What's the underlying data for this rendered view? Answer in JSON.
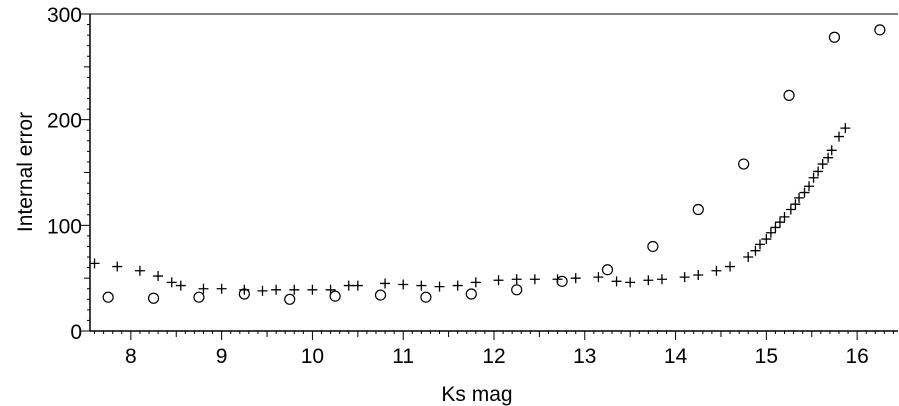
{
  "chart_data": {
    "type": "scatter",
    "title": "",
    "xlabel": "Ks mag",
    "ylabel": "Internal error",
    "xlim": [
      7.55,
      16.45
    ],
    "ylim": [
      0,
      300
    ],
    "x_ticks": [
      8,
      9,
      10,
      11,
      12,
      13,
      14,
      15,
      16
    ],
    "y_ticks": [
      0,
      100,
      200,
      300
    ],
    "x_minor_step": 0.1,
    "y_minor_step": 10,
    "grid": false,
    "colors": {
      "marker": "#000000",
      "axis": "#000000",
      "background": "#ffffff"
    },
    "series": [
      {
        "marker": "plus",
        "points": [
          [
            7.6,
            64
          ],
          [
            7.85,
            61
          ],
          [
            8.1,
            57
          ],
          [
            8.3,
            52
          ],
          [
            8.45,
            46
          ],
          [
            8.55,
            43
          ],
          [
            8.8,
            40
          ],
          [
            9.0,
            40
          ],
          [
            9.25,
            39
          ],
          [
            9.45,
            38
          ],
          [
            9.6,
            39
          ],
          [
            9.8,
            39
          ],
          [
            10.0,
            39
          ],
          [
            10.2,
            39
          ],
          [
            10.4,
            43
          ],
          [
            10.5,
            43
          ],
          [
            10.8,
            45
          ],
          [
            11.0,
            44
          ],
          [
            11.2,
            43
          ],
          [
            11.4,
            42
          ],
          [
            11.6,
            43
          ],
          [
            11.8,
            46
          ],
          [
            12.05,
            48
          ],
          [
            12.25,
            49
          ],
          [
            12.45,
            49
          ],
          [
            12.7,
            49
          ],
          [
            12.9,
            50
          ],
          [
            13.15,
            51
          ],
          [
            13.35,
            47
          ],
          [
            13.5,
            46
          ],
          [
            13.7,
            48
          ],
          [
            13.85,
            49
          ],
          [
            14.1,
            51
          ],
          [
            14.25,
            53
          ],
          [
            14.45,
            57
          ],
          [
            14.6,
            61
          ],
          [
            14.8,
            70
          ],
          [
            14.88,
            76
          ],
          [
            14.93,
            82
          ],
          [
            15.0,
            87
          ],
          [
            15.05,
            93
          ],
          [
            15.1,
            98
          ],
          [
            15.15,
            103
          ],
          [
            15.2,
            108
          ],
          [
            15.27,
            115
          ],
          [
            15.32,
            120
          ],
          [
            15.36,
            126
          ],
          [
            15.42,
            131
          ],
          [
            15.47,
            137
          ],
          [
            15.52,
            145
          ],
          [
            15.57,
            151
          ],
          [
            15.62,
            158
          ],
          [
            15.68,
            164
          ],
          [
            15.72,
            171
          ],
          [
            15.8,
            184
          ],
          [
            15.87,
            192
          ]
        ]
      },
      {
        "marker": "circle",
        "points": [
          [
            7.75,
            32
          ],
          [
            8.25,
            31
          ],
          [
            8.75,
            32
          ],
          [
            9.25,
            35
          ],
          [
            9.75,
            30
          ],
          [
            10.25,
            33
          ],
          [
            10.75,
            34
          ],
          [
            11.25,
            32
          ],
          [
            11.75,
            35
          ],
          [
            12.25,
            39
          ],
          [
            12.75,
            47
          ],
          [
            13.25,
            58
          ],
          [
            13.75,
            80
          ],
          [
            14.25,
            115
          ],
          [
            14.75,
            158
          ],
          [
            15.25,
            223
          ],
          [
            15.75,
            278
          ],
          [
            16.25,
            285
          ]
        ]
      }
    ]
  }
}
